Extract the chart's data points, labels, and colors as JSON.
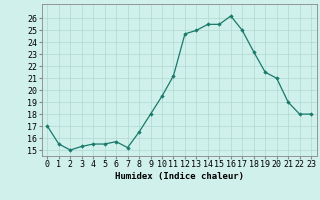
{
  "x": [
    0,
    1,
    2,
    3,
    4,
    5,
    6,
    7,
    8,
    9,
    10,
    11,
    12,
    13,
    14,
    15,
    16,
    17,
    18,
    19,
    20,
    21,
    22,
    23
  ],
  "y": [
    17.0,
    15.5,
    15.0,
    15.3,
    15.5,
    15.5,
    15.7,
    15.2,
    16.5,
    18.0,
    19.5,
    21.2,
    24.7,
    25.0,
    25.5,
    25.5,
    26.2,
    25.0,
    23.2,
    21.5,
    21.0,
    19.0,
    18.0,
    18.0
  ],
  "line_color": "#1a7a6a",
  "marker": "D",
  "marker_size": 1.8,
  "bg_color": "#cff0eb",
  "grid_color": "#b0d8d2",
  "xlabel": "Humidex (Indice chaleur)",
  "ylabel_ticks": [
    15,
    16,
    17,
    18,
    19,
    20,
    21,
    22,
    23,
    24,
    25,
    26
  ],
  "ylim": [
    14.5,
    27.2
  ],
  "xlim": [
    -0.5,
    23.5
  ],
  "xticks": [
    0,
    1,
    2,
    3,
    4,
    5,
    6,
    7,
    8,
    9,
    10,
    11,
    12,
    13,
    14,
    15,
    16,
    17,
    18,
    19,
    20,
    21,
    22,
    23
  ],
  "xlabel_fontsize": 6.5,
  "tick_fontsize": 6.0,
  "linewidth": 0.9
}
